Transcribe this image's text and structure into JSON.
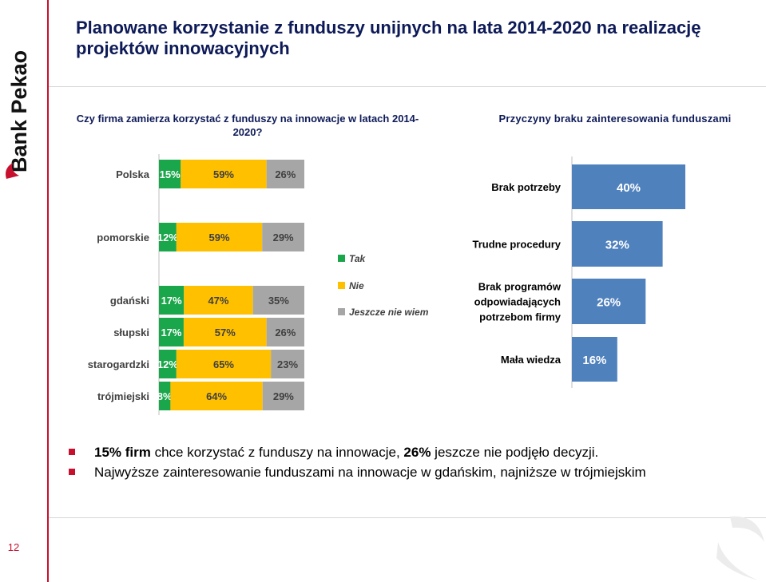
{
  "brand": {
    "logo_text": "Bank Pekao",
    "accent": "#c8102e"
  },
  "page_number": "12",
  "title": "Planowane korzystanie z funduszy unijnych na lata 2014-2020 na realizację projektów innowacyjnych",
  "question_left": "Czy firma zamierza korzystać z funduszy na innowacje w latach 2014-2020?",
  "question_right": "Przyczyny braku zainteresowania funduszami",
  "chart_data": [
    {
      "type": "bar",
      "stacked": true,
      "orientation": "horizontal",
      "categories": [
        "Polska",
        "pomorskie",
        "gdański",
        "słupski",
        "starogardzki",
        "trójmiejski"
      ],
      "series": [
        {
          "name": "Tak",
          "color": "#1aa64a",
          "values": [
            15,
            12,
            17,
            17,
            12,
            8
          ],
          "labels": [
            "15%",
            "12%",
            "17%",
            "17%",
            "12%",
            "8%"
          ]
        },
        {
          "name": "Nie",
          "color": "#ffc000",
          "values": [
            59,
            59,
            47,
            57,
            65,
            64
          ],
          "labels": [
            "59%",
            "59%",
            "47%",
            "57%",
            "65%",
            "64%"
          ]
        },
        {
          "name": "Jeszcze nie wiem",
          "color": "#a6a6a6",
          "values": [
            26,
            29,
            35,
            26,
            23,
            29
          ],
          "labels": [
            "26%",
            "29%",
            "35%",
            "26%",
            "23%",
            "29%"
          ]
        }
      ],
      "legend_position": "right"
    },
    {
      "type": "bar",
      "orientation": "horizontal",
      "color": "#4f81bd",
      "categories": [
        "Brak potrzeby",
        "Trudne procedury",
        "Brak programów odpowiadających potrzebom firmy",
        "Mała wiedza"
      ],
      "category_lines": [
        [
          "Brak potrzeby"
        ],
        [
          "Trudne procedury"
        ],
        [
          "Brak programów",
          "odpowiadających",
          "potrzebom firmy"
        ],
        [
          "Mała wiedza"
        ]
      ],
      "values": [
        40,
        32,
        26,
        16
      ],
      "labels": [
        "40%",
        "32%",
        "26%",
        "16%"
      ]
    }
  ],
  "bullets": [
    {
      "bold": "15% firm",
      "text1": " chce korzystać z funduszy na innowacje, ",
      "bold2": "26%",
      "text2": " jeszcze nie podjęło decyzji."
    },
    {
      "text": "Najwyższe zainteresowanie  funduszami na innowacje w  gdańskim, najniższe w trójmiejskim"
    }
  ]
}
